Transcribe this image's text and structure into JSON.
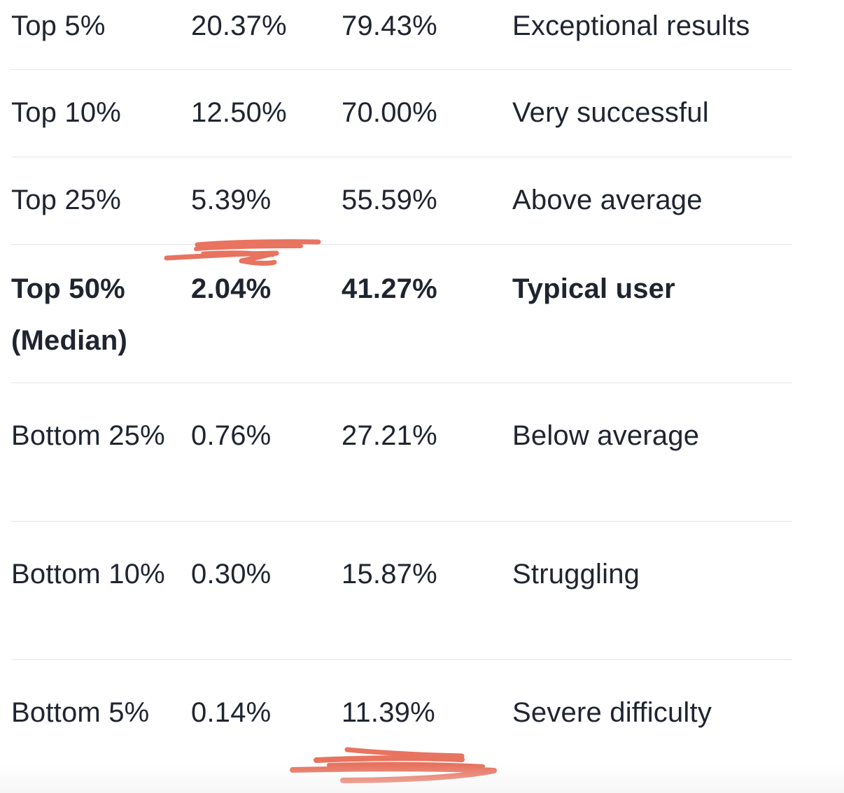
{
  "table": {
    "rows": [
      {
        "percentile": "Top 5%",
        "value_a": "20.37%",
        "value_b": "79.43%",
        "description": "Exceptional results"
      },
      {
        "percentile": "Top 10%",
        "value_a": "12.50%",
        "value_b": "70.00%",
        "description": "Very successful"
      },
      {
        "percentile": "Top 25%",
        "value_a": "5.39%",
        "value_b": "55.59%",
        "description": "Above average"
      },
      {
        "percentile": "Top 50% (Median)",
        "value_a": "2.04%",
        "value_b": "41.27%",
        "description": "Typical user"
      },
      {
        "percentile": "Bottom 25%",
        "value_a": "0.76%",
        "value_b": "27.21%",
        "description": "Below average"
      },
      {
        "percentile": "Bottom 10%",
        "value_a": "0.30%",
        "value_b": "15.87%",
        "description": "Struggling"
      },
      {
        "percentile": "Bottom 5%",
        "value_a": "0.14%",
        "value_b": "11.39%",
        "description": "Severe difficulty"
      }
    ]
  },
  "colors": {
    "text": "#1f2430",
    "divider": "#e2e4e8",
    "annotation": "#e8735f"
  }
}
